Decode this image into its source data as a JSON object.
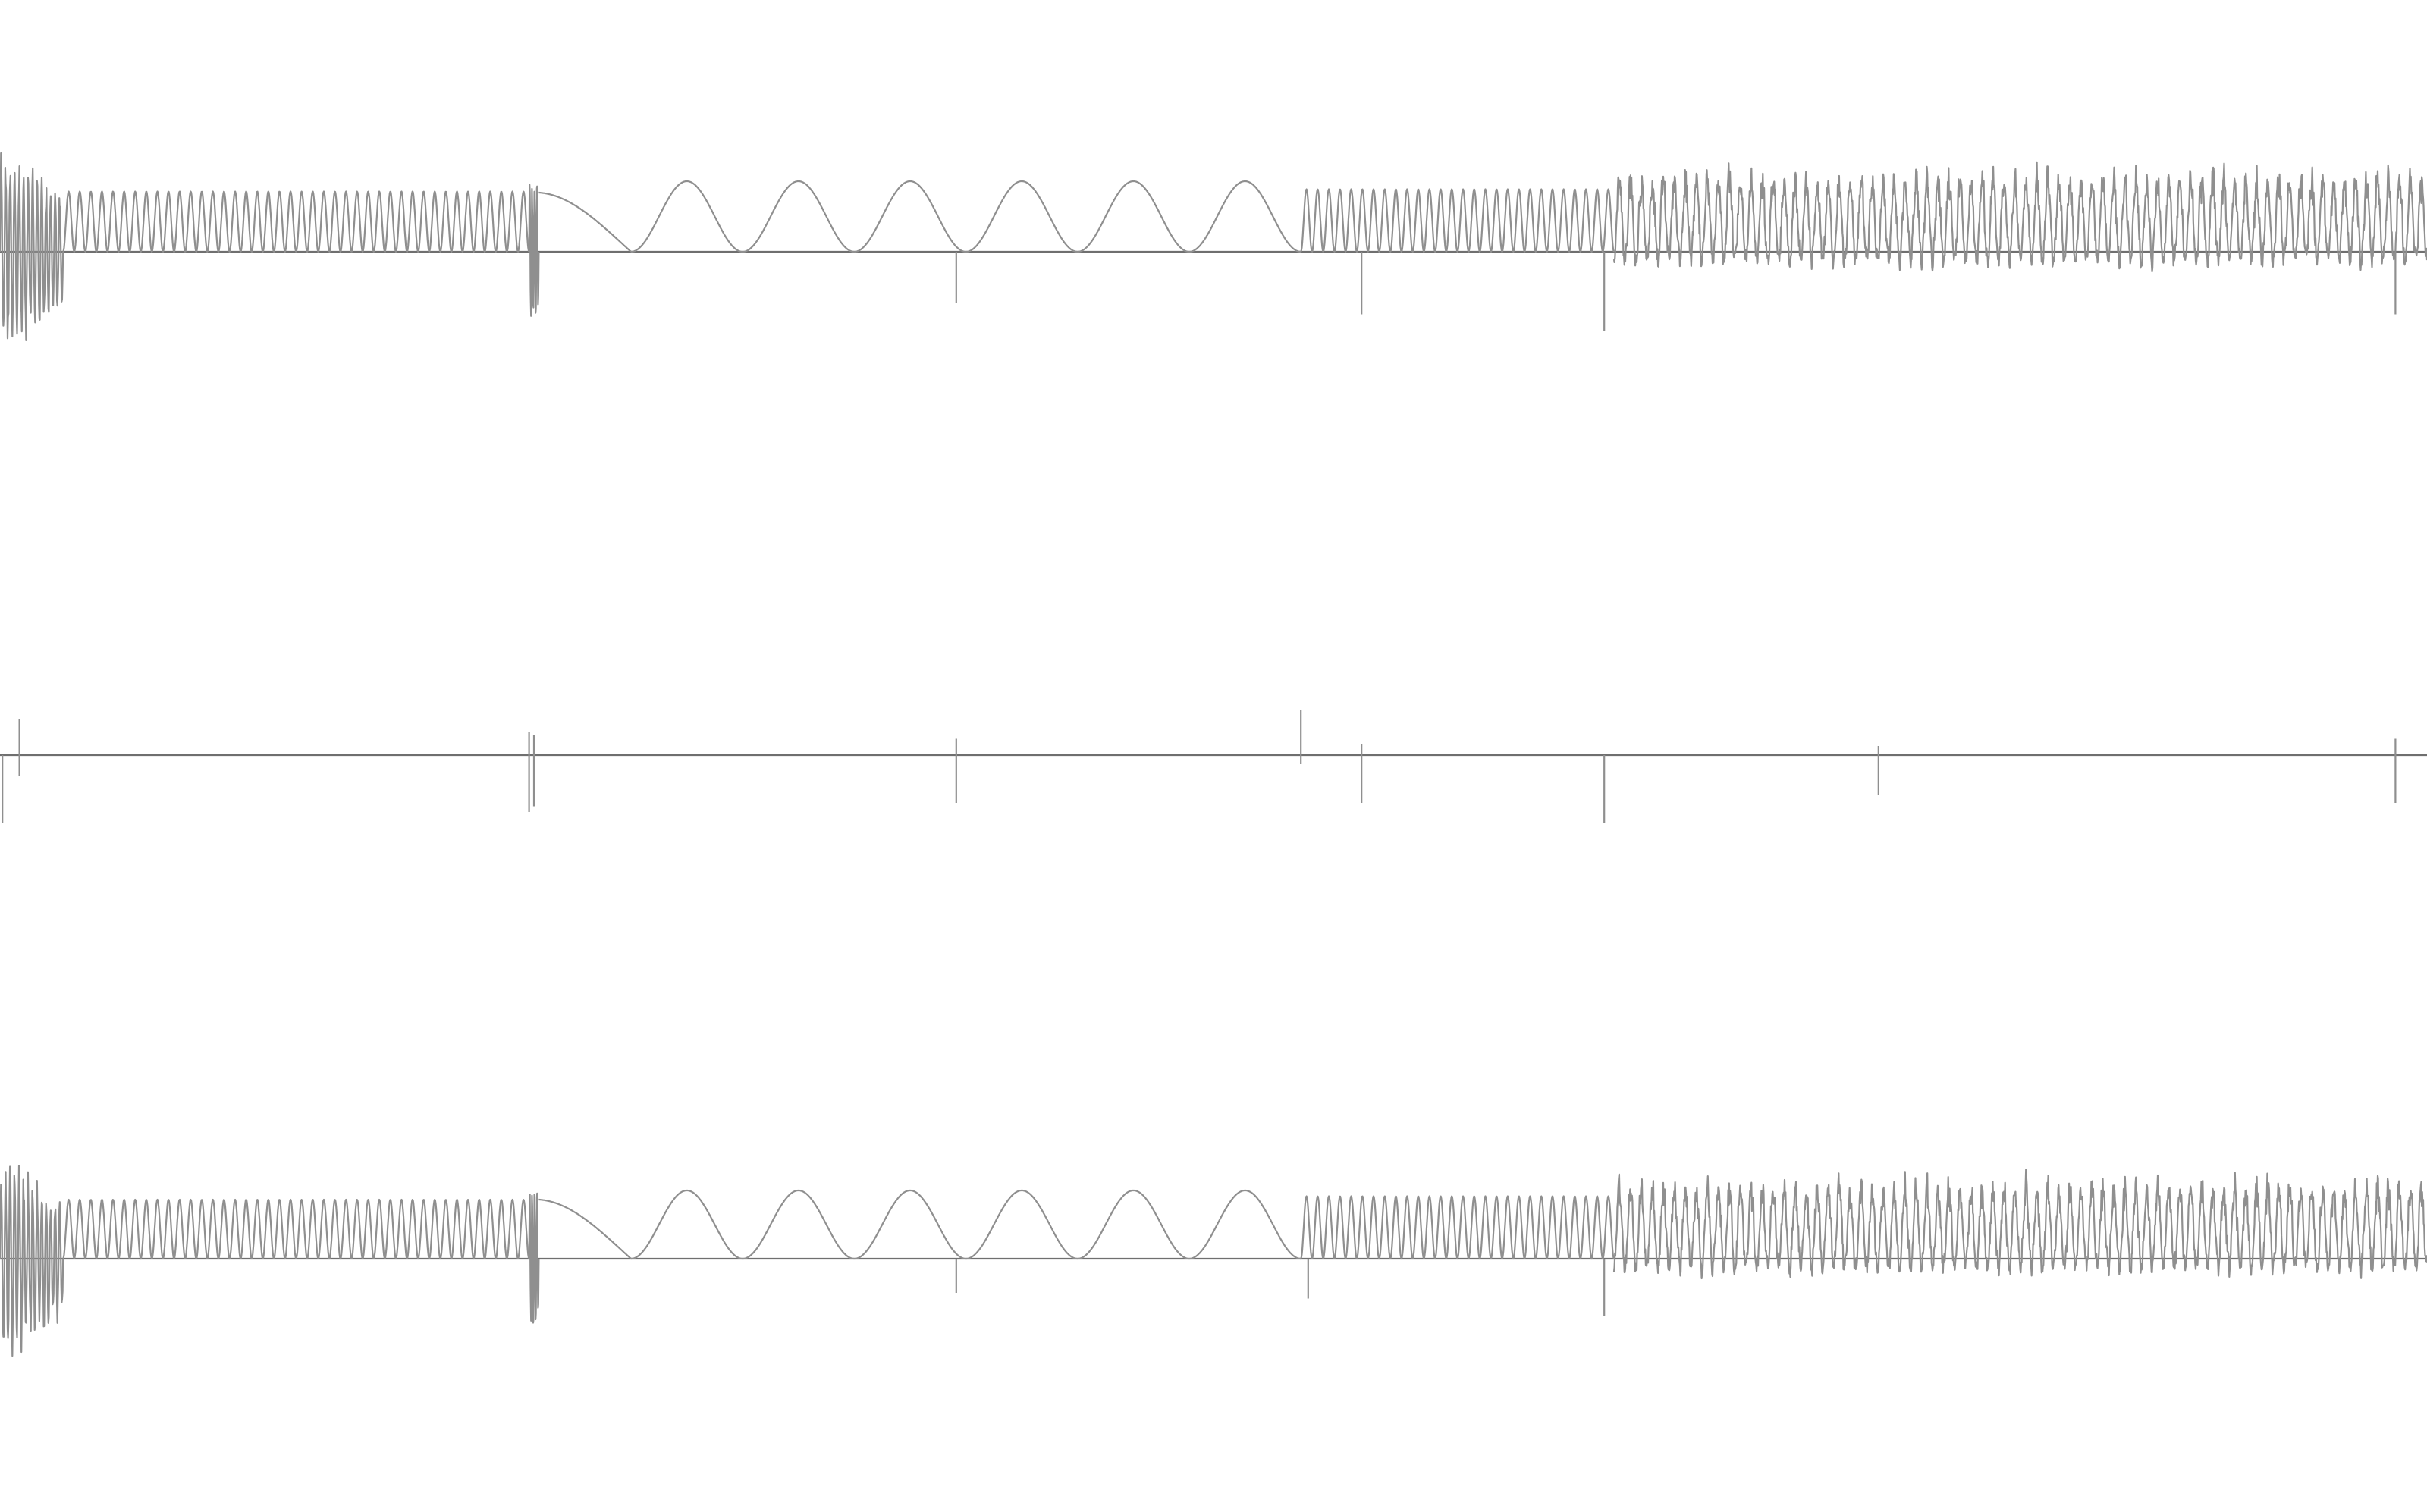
{
  "chart_data": {
    "type": "line",
    "title": "",
    "xlabel": "",
    "ylabel": "",
    "grid": false,
    "legend": "none",
    "x_range": [
      0,
      1
    ],
    "y_range": [
      -1,
      1
    ],
    "colors": {
      "waveform": "#8f8f8f",
      "baseline": "#6f6f6f",
      "background": "#ffffff"
    },
    "panels": [
      {
        "name": "",
        "segments": [
          {
            "start": 0.0,
            "end": 0.026,
            "kind": "burst",
            "amplitude": 1.0,
            "cycles": 14,
            "decay": true
          },
          {
            "start": 0.026,
            "end": 0.218,
            "kind": "tone",
            "amplitude": 0.53,
            "cycles": 42,
            "offset": 0.0
          },
          {
            "start": 0.218,
            "end": 0.222,
            "kind": "burst",
            "amplitude": 0.62,
            "cycles": 4,
            "decay": false
          },
          {
            "start": 0.222,
            "end": 0.26,
            "kind": "glide",
            "amplitude": 0.52,
            "cycles": 0.5
          },
          {
            "start": 0.26,
            "end": 0.536,
            "kind": "tone",
            "amplitude": 0.62,
            "cycles": 6,
            "offset": 0.0
          },
          {
            "start": 0.536,
            "end": 0.665,
            "kind": "tone",
            "amplitude": 0.55,
            "cycles": 28,
            "offset": 0.0
          },
          {
            "start": 0.665,
            "end": 1.0,
            "kind": "noisy",
            "amplitude": 0.8,
            "cycles": 74,
            "offset": 0.0
          }
        ],
        "spikes": [
          {
            "x": 0.394,
            "value": -0.45
          },
          {
            "x": 0.561,
            "value": -0.55
          },
          {
            "x": 0.661,
            "value": -0.7
          },
          {
            "x": 0.987,
            "value": -0.55
          }
        ]
      },
      {
        "name": "",
        "segments": [],
        "spikes": [
          {
            "x": 0.001,
            "value": -0.6
          },
          {
            "x": 0.008,
            "value": 0.32
          },
          {
            "x": 0.008,
            "value": -0.18
          },
          {
            "x": 0.218,
            "value": 0.2
          },
          {
            "x": 0.218,
            "value": -0.5
          },
          {
            "x": 0.22,
            "value": 0.18
          },
          {
            "x": 0.22,
            "value": -0.45
          },
          {
            "x": 0.394,
            "value": 0.15
          },
          {
            "x": 0.394,
            "value": -0.42
          },
          {
            "x": 0.536,
            "value": 0.4
          },
          {
            "x": 0.536,
            "value": -0.08
          },
          {
            "x": 0.561,
            "value": 0.1
          },
          {
            "x": 0.561,
            "value": -0.42
          },
          {
            "x": 0.661,
            "value": -0.6
          },
          {
            "x": 0.774,
            "value": 0.08
          },
          {
            "x": 0.774,
            "value": -0.35
          },
          {
            "x": 0.987,
            "value": 0.15
          },
          {
            "x": 0.987,
            "value": -0.42
          }
        ]
      },
      {
        "name": "",
        "segments": [
          {
            "start": 0.0,
            "end": 0.026,
            "kind": "burst",
            "amplitude": 1.0,
            "cycles": 14,
            "decay": true
          },
          {
            "start": 0.026,
            "end": 0.218,
            "kind": "tone",
            "amplitude": 0.52,
            "cycles": 42,
            "offset": 0.0
          },
          {
            "start": 0.218,
            "end": 0.222,
            "kind": "burst",
            "amplitude": 0.62,
            "cycles": 4,
            "decay": false
          },
          {
            "start": 0.222,
            "end": 0.26,
            "kind": "glide",
            "amplitude": 0.52,
            "cycles": 0.5
          },
          {
            "start": 0.26,
            "end": 0.536,
            "kind": "tone",
            "amplitude": 0.6,
            "cycles": 6,
            "offset": 0.0
          },
          {
            "start": 0.536,
            "end": 0.665,
            "kind": "tone",
            "amplitude": 0.55,
            "cycles": 28,
            "offset": 0.0
          },
          {
            "start": 0.665,
            "end": 1.0,
            "kind": "noisy",
            "amplitude": 0.78,
            "cycles": 74,
            "offset": 0.0
          }
        ],
        "spikes": [
          {
            "x": 0.394,
            "value": -0.3
          },
          {
            "x": 0.539,
            "value": -0.35
          },
          {
            "x": 0.661,
            "value": -0.5
          }
        ]
      }
    ]
  }
}
